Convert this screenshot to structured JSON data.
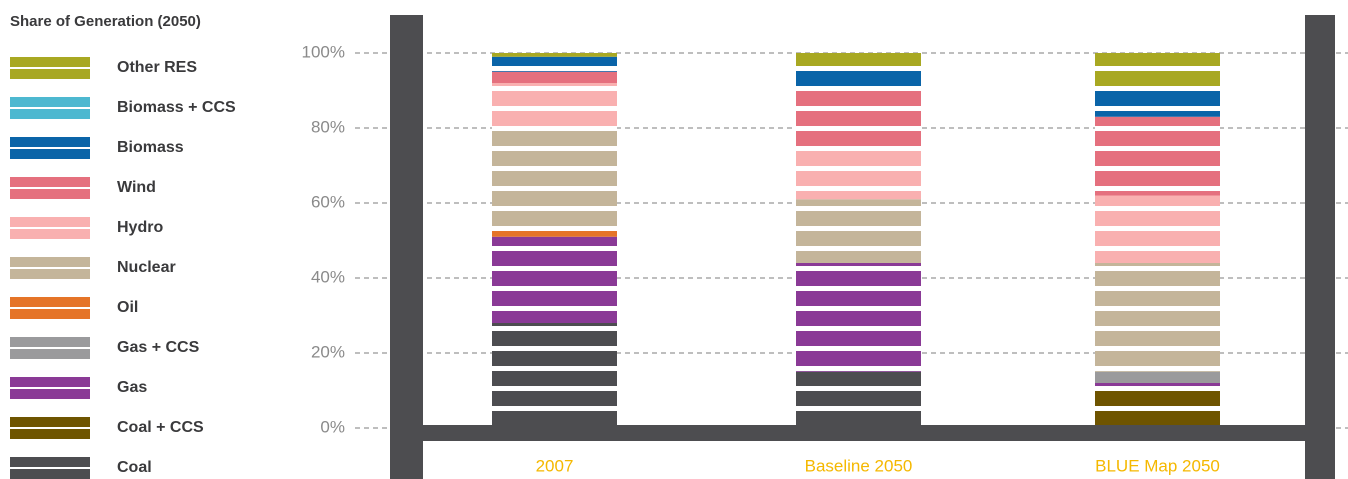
{
  "chart_data": {
    "type": "stacked_bar",
    "legend_title": "Share of Generation (2050)",
    "categories": [
      "2007",
      "Baseline 2050",
      "BLUE Map 2050"
    ],
    "series": [
      {
        "name": "Coal",
        "color": "#4d4d50",
        "values": [
          28,
          15,
          0
        ]
      },
      {
        "name": "Coal + CCS",
        "color": "#6e5400",
        "values": [
          0,
          0,
          10
        ]
      },
      {
        "name": "Gas",
        "color": "#8a3a96",
        "values": [
          23,
          29,
          2
        ]
      },
      {
        "name": "Gas + CCS",
        "color": "#9a9a9c",
        "values": [
          0,
          0,
          3
        ]
      },
      {
        "name": "Oil",
        "color": "#e57428",
        "values": [
          2,
          0,
          0
        ]
      },
      {
        "name": "Nuclear",
        "color": "#c4b59a",
        "values": [
          27,
          17,
          29
        ]
      },
      {
        "name": "Hydro",
        "color": "#f9b0b0",
        "values": [
          12,
          14,
          18
        ]
      },
      {
        "name": "Wind",
        "color": "#e5707e",
        "values": [
          3,
          15,
          21
        ]
      },
      {
        "name": "Biomass",
        "color": "#0a64a8",
        "values": [
          4,
          6,
          7
        ]
      },
      {
        "name": "Biomass + CCS",
        "color": "#4db8d0",
        "values": [
          0,
          0,
          0
        ]
      },
      {
        "name": "Other RES",
        "color": "#a8a822",
        "values": [
          1,
          4,
          10
        ]
      }
    ],
    "ylim": [
      0,
      100
    ],
    "yticks": [
      {
        "value": 0,
        "label": "0%"
      },
      {
        "value": 20,
        "label": "20%"
      },
      {
        "value": 40,
        "label": "40%"
      },
      {
        "value": 60,
        "label": "60%"
      },
      {
        "value": 80,
        "label": "80%"
      },
      {
        "value": 100,
        "label": "100%"
      }
    ],
    "grid": true
  }
}
